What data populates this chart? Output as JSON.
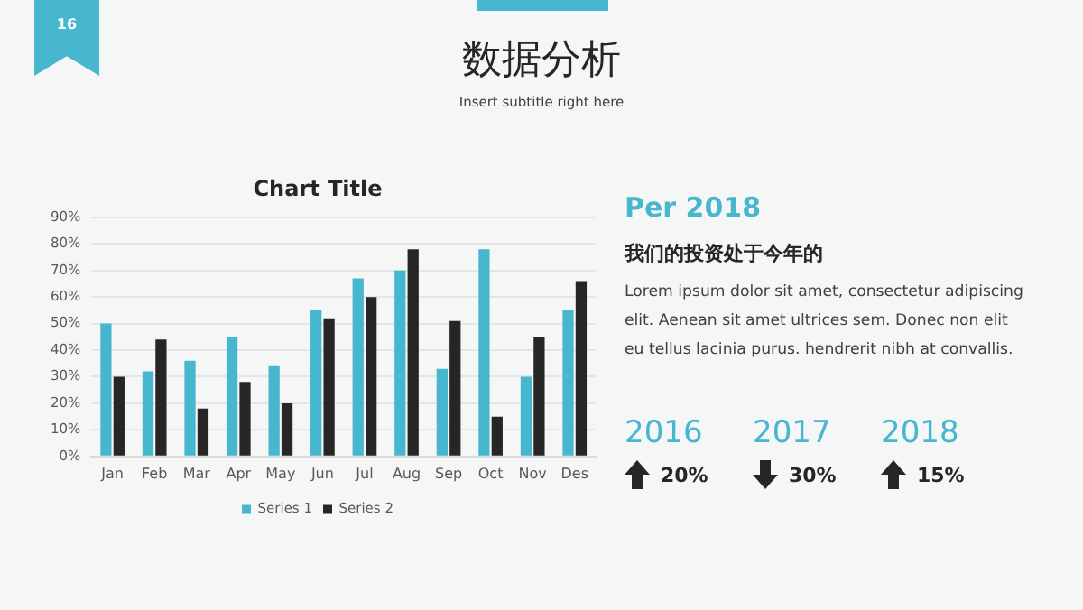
{
  "chart_data": [
    {
      "type": "bar",
      "title": "Chart Title",
      "categories": [
        "Jan",
        "Feb",
        "Mar",
        "Apr",
        "May",
        "Jun",
        "Jul",
        "Aug",
        "Sep",
        "Oct",
        "Nov",
        "Des"
      ],
      "series": [
        {
          "name": "Series 1",
          "color": "#47b6cf",
          "values": [
            50,
            32,
            36,
            45,
            34,
            55,
            67,
            70,
            33,
            78,
            30,
            55
          ]
        },
        {
          "name": "Series 2",
          "color": "#262626",
          "values": [
            30,
            44,
            18,
            28,
            20,
            52,
            60,
            78,
            51,
            15,
            45,
            66
          ]
        }
      ],
      "ylim": [
        0,
        90
      ],
      "yticks": [
        {
          "value": 0,
          "label": "0%"
        },
        {
          "value": 10,
          "label": "10%"
        },
        {
          "value": 20,
          "label": "20%"
        },
        {
          "value": 30,
          "label": "30%"
        },
        {
          "value": 40,
          "label": "40%"
        },
        {
          "value": 50,
          "label": "50%"
        },
        {
          "value": 60,
          "label": "60%"
        },
        {
          "value": 70,
          "label": "70%"
        },
        {
          "value": 80,
          "label": "80%"
        },
        {
          "value": 90,
          "label": "90%"
        }
      ],
      "grid": "y",
      "legend": "bottom"
    },
    {
      "type": "other",
      "title": "数据分析",
      "subtitle": "Insert subtitle right here",
      "annotations": [
        "16",
        "Per 2018",
        "我们的投资处于今年的",
        "Lorem ipsum dolor sit amet, consectetur adipiscing elit. Aenean sit amet ultrices sem. Donec non elit eu tellus lacinia purus.  hendrerit nibh at convallis.",
        "2016",
        "20%",
        "2017",
        "30%",
        "2018",
        "15%"
      ]
    }
  ]
}
